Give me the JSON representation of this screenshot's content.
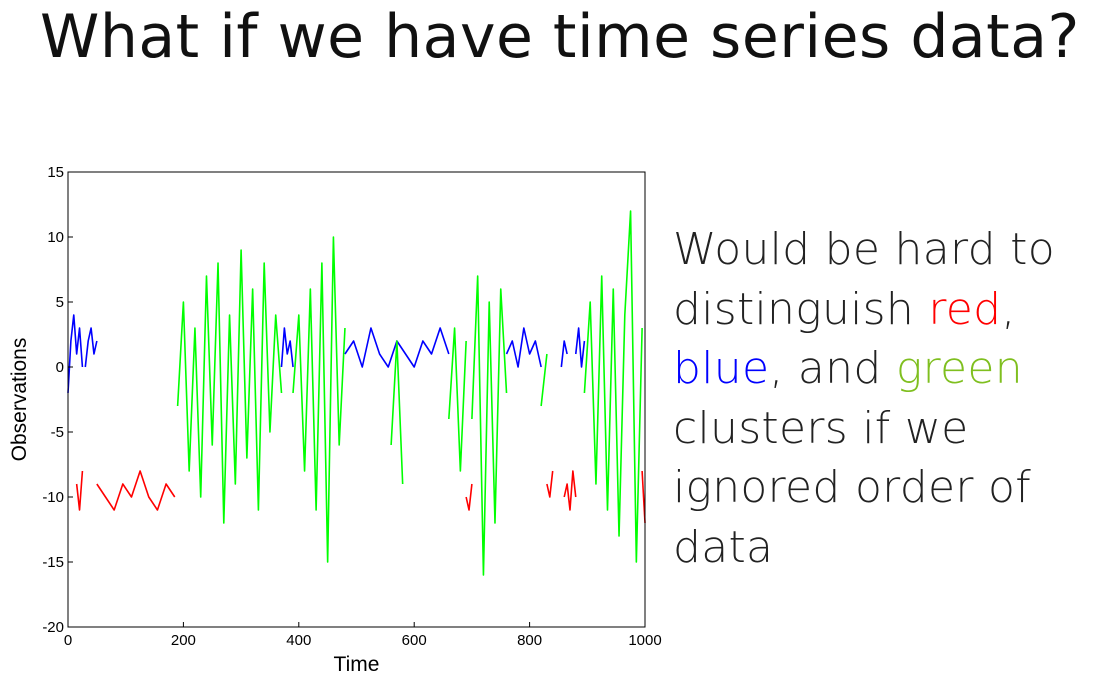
{
  "slide": {
    "title": "What if we have time series data?",
    "text": {
      "line1": "Would be hard to",
      "line2_pre": "distinguish ",
      "line2_red": "red",
      "line2_post": ",",
      "line3_blue": "blue",
      "line3_mid": ", and ",
      "line3_green": "green",
      "line4": "clusters if we",
      "line5": "ignored order of",
      "line6": "data"
    },
    "colors": {
      "red": "#ff0000",
      "blue": "#0000ff",
      "green": "#7fbf1f"
    }
  },
  "chart_data": {
    "type": "line",
    "xlabel": "Time",
    "ylabel": "Observations",
    "xlim": [
      0,
      1000
    ],
    "ylim": [
      -20,
      15
    ],
    "xticks": [
      0,
      200,
      400,
      600,
      800,
      1000
    ],
    "yticks": [
      15,
      10,
      5,
      0,
      -5,
      -10,
      -15,
      -20
    ],
    "grid": false,
    "legend": "none",
    "series": [
      {
        "color": "#0000ff",
        "segments": [
          {
            "x": [
              0,
              5,
              10,
              15,
              20,
              25
            ],
            "y": [
              -2,
              2,
              4,
              1,
              3,
              0
            ]
          },
          {
            "x": [
              30,
              35,
              40,
              45,
              50
            ],
            "y": [
              0,
              2,
              3,
              1,
              2
            ]
          },
          {
            "x": [
              370,
              375,
              380,
              385,
              390
            ],
            "y": [
              0,
              3,
              1,
              2,
              0
            ]
          },
          {
            "x": [
              480,
              495,
              510,
              525,
              540,
              555,
              570,
              585,
              600,
              615,
              630,
              645,
              660
            ],
            "y": [
              1,
              2,
              0,
              3,
              1,
              0,
              2,
              1,
              0,
              2,
              1,
              3,
              1
            ]
          },
          {
            "x": [
              760,
              770,
              780,
              790,
              800,
              810,
              820
            ],
            "y": [
              1,
              2,
              0,
              3,
              1,
              2,
              0
            ]
          },
          {
            "x": [
              855,
              860,
              865
            ],
            "y": [
              0,
              2,
              1
            ]
          },
          {
            "x": [
              880,
              885,
              890,
              895
            ],
            "y": [
              1,
              3,
              0,
              2
            ]
          }
        ]
      },
      {
        "color": "#ff0000",
        "segments": [
          {
            "x": [
              15,
              20,
              25
            ],
            "y": [
              -9,
              -11,
              -8
            ]
          },
          {
            "x": [
              50,
              65,
              80,
              95,
              110,
              125,
              140,
              155,
              170,
              185
            ],
            "y": [
              -9,
              -10,
              -11,
              -9,
              -10,
              -8,
              -10,
              -11,
              -9,
              -10
            ]
          },
          {
            "x": [
              690,
              695,
              700
            ],
            "y": [
              -10,
              -11,
              -9
            ]
          },
          {
            "x": [
              830,
              835,
              840
            ],
            "y": [
              -9,
              -10,
              -8
            ]
          },
          {
            "x": [
              860,
              865,
              870,
              875,
              880
            ],
            "y": [
              -10,
              -9,
              -11,
              -8,
              -10
            ]
          },
          {
            "x": [
              995,
              1000
            ],
            "y": [
              -8,
              -12
            ]
          }
        ]
      },
      {
        "color": "#00ff00",
        "segments": [
          {
            "x": [
              190,
              200,
              210,
              220,
              230,
              240,
              250,
              260,
              270,
              280,
              290,
              300,
              310,
              320,
              330,
              340,
              350,
              360,
              370
            ],
            "y": [
              -3,
              5,
              -8,
              3,
              -10,
              7,
              -6,
              8,
              -12,
              4,
              -9,
              9,
              -7,
              6,
              -11,
              8,
              -5,
              4,
              -2
            ]
          },
          {
            "x": [
              390,
              400,
              410,
              420,
              430,
              440,
              450,
              460,
              470,
              480
            ],
            "y": [
              -2,
              4,
              -8,
              6,
              -11,
              8,
              -15,
              10,
              -6,
              3
            ]
          },
          {
            "x": [
              560,
              570,
              580
            ],
            "y": [
              -6,
              2,
              -9
            ]
          },
          {
            "x": [
              660,
              670,
              680,
              690
            ],
            "y": [
              -4,
              3,
              -8,
              2
            ]
          },
          {
            "x": [
              700,
              710,
              720,
              730,
              740,
              750,
              760
            ],
            "y": [
              -4,
              7,
              -16,
              5,
              -12,
              6,
              -2
            ]
          },
          {
            "x": [
              820,
              830
            ],
            "y": [
              -3,
              1
            ]
          },
          {
            "x": [
              895,
              905,
              915,
              925,
              935,
              945,
              955,
              965,
              975,
              985,
              995
            ],
            "y": [
              -2,
              5,
              -9,
              7,
              -11,
              6,
              -13,
              4,
              12,
              -15,
              3
            ]
          }
        ]
      }
    ]
  }
}
